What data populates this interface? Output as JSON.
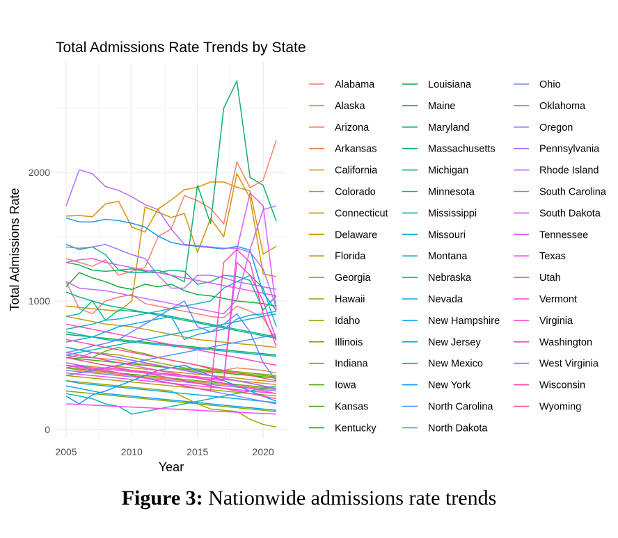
{
  "caption": {
    "label": "Figure 3:",
    "text": "Nationwide admissions rate trends"
  },
  "chart_data": {
    "type": "line",
    "title": "Total Admissions Rate Trends by State",
    "xlabel": "Year",
    "ylabel": "Total Admissions Rate",
    "xlim": [
      2005,
      2021
    ],
    "ylim": [
      0,
      2800
    ],
    "x_ticks": [
      "2005",
      "2010",
      "2015",
      "2020"
    ],
    "y_ticks": [
      "0",
      "1000",
      "2000"
    ],
    "grid": true,
    "legend_position": "right",
    "legend_title": "",
    "x": [
      2005,
      2006,
      2007,
      2008,
      2009,
      2010,
      2011,
      2012,
      2013,
      2014,
      2015,
      2016,
      2017,
      2018,
      2019,
      2020,
      2021
    ],
    "series": [
      {
        "name": "Alabama",
        "color": "#F8766D",
        "values": [
          1150,
          940,
          900,
          1000,
          1030,
          1050,
          980,
          960,
          940,
          920,
          900,
          880,
          870,
          960,
          920,
          870,
          690
        ]
      },
      {
        "name": "Alaska",
        "color": "#F47A5F",
        "values": [
          1330,
          1300,
          1270,
          1320,
          1200,
          1230,
          1260,
          1500,
          1560,
          1820,
          1780,
          1720,
          1600,
          2080,
          1880,
          1940,
          2250
        ]
      },
      {
        "name": "Arizona",
        "color": "#EE7E50",
        "values": [
          560,
          580,
          560,
          550,
          540,
          520,
          510,
          500,
          480,
          460,
          450,
          440,
          460,
          480,
          470,
          460,
          440
        ]
      },
      {
        "name": "Arkansas",
        "color": "#E7833F",
        "values": [
          520,
          500,
          490,
          480,
          470,
          460,
          450,
          440,
          430,
          420,
          410,
          400,
          390,
          380,
          370,
          360,
          350
        ]
      },
      {
        "name": "California",
        "color": "#DF8729",
        "values": [
          480,
          460,
          450,
          440,
          430,
          420,
          410,
          400,
          390,
          380,
          370,
          360,
          350,
          340,
          330,
          320,
          310
        ]
      },
      {
        "name": "Colorado",
        "color": "#D68B00",
        "values": [
          1660,
          1665,
          1655,
          1755,
          1775,
          1575,
          1535,
          1715,
          1785,
          1865,
          1885,
          1925,
          1925,
          1885,
          1855,
          1365,
          1425
        ]
      },
      {
        "name": "Connecticut",
        "color": "#CC8F00",
        "values": [
          960,
          950,
          940,
          930,
          920,
          1000,
          1730,
          1690,
          1650,
          1680,
          1380,
          1640,
          1500,
          1990,
          1800,
          1210,
          1190
        ]
      },
      {
        "name": "Delaware",
        "color": "#C29300",
        "values": [
          880,
          860,
          840,
          820,
          810,
          800,
          780,
          760,
          740,
          720,
          700,
          690,
          680,
          670,
          660,
          650,
          640
        ]
      },
      {
        "name": "Florida",
        "color": "#B79600",
        "values": [
          560,
          540,
          520,
          500,
          490,
          480,
          470,
          460,
          450,
          440,
          430,
          420,
          410,
          400,
          390,
          380,
          370
        ]
      },
      {
        "name": "Georgia",
        "color": "#AB9A00",
        "values": [
          420,
          410,
          400,
          390,
          380,
          370,
          360,
          350,
          340,
          330,
          320,
          310,
          300,
          290,
          280,
          270,
          260
        ]
      },
      {
        "name": "Hawaii",
        "color": "#9E9D00",
        "values": [
          380,
          370,
          360,
          350,
          340,
          330,
          320,
          310,
          300,
          250,
          200,
          160,
          150,
          140,
          80,
          40,
          20
        ]
      },
      {
        "name": "Idaho",
        "color": "#8FA100",
        "values": [
          640,
          620,
          600,
          590,
          580,
          560,
          540,
          520,
          500,
          480,
          470,
          460,
          450,
          440,
          430,
          420,
          410
        ]
      },
      {
        "name": "Illinois",
        "color": "#7FA300",
        "values": [
          300,
          290,
          280,
          270,
          260,
          250,
          240,
          230,
          220,
          210,
          200,
          190,
          180,
          170,
          160,
          150,
          140
        ]
      },
      {
        "name": "Indiana",
        "color": "#6CA600",
        "values": [
          580,
          560,
          560,
          610,
          640,
          610,
          590,
          560,
          540,
          520,
          500,
          470,
          460,
          450,
          440,
          430,
          420
        ]
      },
      {
        "name": "Iowa",
        "color": "#53A900",
        "values": [
          480,
          470,
          460,
          450,
          440,
          430,
          420,
          410,
          400,
          390,
          380,
          370,
          360,
          350,
          340,
          330,
          320
        ]
      },
      {
        "name": "Kansas",
        "color": "#2BAB00",
        "values": [
          560,
          550,
          540,
          530,
          520,
          510,
          500,
          490,
          480,
          470,
          460,
          450,
          440,
          430,
          420,
          410,
          400
        ]
      },
      {
        "name": "Kentucky",
        "color": "#00AD2A",
        "values": [
          1110,
          1220,
          1180,
          1150,
          1110,
          1090,
          1130,
          1110,
          1130,
          1080,
          1050,
          1040,
          1020,
          1000,
          990,
          980,
          960
        ]
      },
      {
        "name": "Louisiana",
        "color": "#00AF47",
        "values": [
          740,
          730,
          720,
          710,
          700,
          690,
          680,
          670,
          660,
          650,
          640,
          630,
          620,
          610,
          600,
          590,
          580
        ]
      },
      {
        "name": "Maine",
        "color": "#00B05E",
        "values": [
          1300,
          1280,
          1240,
          1230,
          1240,
          1250,
          1230,
          1240,
          1200,
          1150,
          1900,
          1600,
          2500,
          2710,
          1960,
          1900,
          1620
        ]
      },
      {
        "name": "Maryland",
        "color": "#00B172",
        "values": [
          1070,
          1030,
          1000,
          970,
          950,
          930,
          910,
          890,
          870,
          850,
          830,
          810,
          790,
          770,
          750,
          730,
          710
        ]
      },
      {
        "name": "Massachusetts",
        "color": "#00B284",
        "values": [
          1440,
          1400,
          1420,
          1360,
          1240,
          1220,
          1220,
          1220,
          1240,
          1230,
          1130,
          1150,
          1200,
          1190,
          1160,
          930,
          1040
        ]
      },
      {
        "name": "Michigan",
        "color": "#00B395",
        "values": [
          880,
          900,
          1000,
          850,
          930,
          920,
          910,
          900,
          880,
          860,
          840,
          820,
          800,
          780,
          760,
          740,
          720
        ]
      },
      {
        "name": "Minnesota",
        "color": "#00B3A5",
        "values": [
          280,
          260,
          240,
          200,
          180,
          120,
          140,
          160,
          180,
          200,
          220,
          240,
          260,
          280,
          300,
          320,
          340
        ]
      },
      {
        "name": "Mississippi",
        "color": "#00B2B4",
        "values": [
          580,
          600,
          620,
          640,
          660,
          680,
          700,
          720,
          740,
          760,
          780,
          800,
          820,
          840,
          860,
          880,
          900
        ]
      },
      {
        "name": "Missouri",
        "color": "#00B0C2",
        "values": [
          780,
          800,
          820,
          850,
          860,
          880,
          900,
          920,
          940,
          960,
          980,
          1000,
          1100,
          1150,
          1200,
          1100,
          800
        ]
      },
      {
        "name": "Montana",
        "color": "#00AECF",
        "values": [
          760,
          740,
          720,
          700,
          690,
          680,
          670,
          660,
          650,
          640,
          630,
          620,
          610,
          600,
          590,
          580,
          570
        ]
      },
      {
        "name": "Nebraska",
        "color": "#00ABDA",
        "values": [
          380,
          360,
          350,
          340,
          330,
          320,
          310,
          300,
          290,
          280,
          270,
          260,
          250,
          240,
          230,
          220,
          210
        ]
      },
      {
        "name": "Nevada",
        "color": "#00A8E4",
        "values": [
          640,
          620,
          600,
          580,
          560,
          540,
          520,
          500,
          480,
          460,
          440,
          420,
          400,
          380,
          360,
          340,
          320
        ]
      },
      {
        "name": "New Hampshire",
        "color": "#00A4EC",
        "values": [
          680,
          700,
          720,
          760,
          800,
          820,
          840,
          860,
          880,
          700,
          740,
          760,
          780,
          860,
          890,
          900,
          920
        ]
      },
      {
        "name": "New Jersey",
        "color": "#00A0F4",
        "values": [
          340,
          320,
          300,
          280,
          270,
          260,
          250,
          240,
          230,
          220,
          210,
          200,
          190,
          180,
          170,
          160,
          150
        ]
      },
      {
        "name": "New Mexico",
        "color": "#009BFA",
        "values": [
          260,
          200,
          270,
          300,
          340,
          380,
          420,
          460,
          480,
          500,
          460,
          420,
          380,
          340,
          300,
          260,
          220
        ]
      },
      {
        "name": "New York",
        "color": "#0795FF",
        "values": [
          1645,
          1615,
          1615,
          1635,
          1625,
          1605,
          1575,
          1505,
          1455,
          1435,
          1425,
          1415,
          1405,
          1425,
          1395,
          1065,
          925
        ]
      },
      {
        "name": "North Carolina",
        "color": "#3A8EFF",
        "values": [
          420,
          440,
          460,
          480,
          500,
          520,
          540,
          560,
          580,
          600,
          620,
          640,
          660,
          680,
          700,
          720,
          740
        ]
      },
      {
        "name": "North Dakota",
        "color": "#5A87FF",
        "values": [
          600,
          620,
          650,
          670,
          700,
          760,
          820,
          880,
          940,
          1000,
          800,
          760,
          820,
          900,
          760,
          520,
          380
        ]
      },
      {
        "name": "Ohio",
        "color": "#727FFF",
        "values": [
          520,
          500,
          480,
          460,
          440,
          420,
          400,
          380,
          360,
          340,
          320,
          300,
          280,
          260,
          240,
          220,
          200
        ]
      },
      {
        "name": "Oklahoma",
        "color": "#8977FF",
        "values": [
          460,
          450,
          440,
          430,
          420,
          410,
          400,
          390,
          380,
          370,
          360,
          350,
          340,
          330,
          320,
          310,
          300
        ]
      },
      {
        "name": "Oregon",
        "color": "#9D6FFF",
        "values": [
          1420,
          1410,
          1420,
          1440,
          1400,
          1360,
          1330,
          1200,
          1100,
          1100,
          1200,
          1200,
          1180,
          1150,
          1130,
          1110,
          1090
        ]
      },
      {
        "name": "Pennsylvania",
        "color": "#AE68FF",
        "values": [
          1740,
          2020,
          1990,
          1890,
          1860,
          1810,
          1750,
          1710,
          1560,
          1440,
          1430,
          1420,
          1410,
          1410,
          1380,
          1250,
          950
        ]
      },
      {
        "name": "Rhode Island",
        "color": "#BE61FF",
        "values": [
          1150,
          1100,
          1090,
          1080,
          1060,
          1040,
          1020,
          1000,
          980,
          960,
          940,
          920,
          900,
          1010,
          1400,
          1710,
          1740
        ]
      },
      {
        "name": "South Carolina",
        "color": "#CC5AFF",
        "values": [
          580,
          560,
          600,
          580,
          560,
          540,
          520,
          500,
          480,
          460,
          440,
          420,
          400,
          380,
          360,
          340,
          320
        ]
      },
      {
        "name": "South Dakota",
        "color": "#D953FF",
        "values": [
          500,
          490,
          480,
          470,
          460,
          450,
          440,
          430,
          420,
          410,
          400,
          390,
          380,
          1400,
          1840,
          1740,
          930
        ]
      },
      {
        "name": "Tennessee",
        "color": "#E44DFA",
        "values": [
          1300,
          1320,
          1330,
          1300,
          1280,
          1260,
          1240,
          1220,
          1200,
          1180,
          1160,
          1140,
          1120,
          1100,
          1080,
          1060,
          1040
        ]
      },
      {
        "name": "Texas",
        "color": "#EE47F1",
        "values": [
          440,
          430,
          420,
          410,
          400,
          390,
          380,
          370,
          360,
          350,
          340,
          330,
          320,
          310,
          300,
          290,
          280
        ]
      },
      {
        "name": "Utah",
        "color": "#F742E7",
        "values": [
          200,
          195,
          190,
          185,
          180,
          175,
          170,
          165,
          160,
          155,
          150,
          145,
          140,
          135,
          130,
          125,
          120
        ]
      },
      {
        "name": "Vermont",
        "color": "#FD3FDB",
        "values": [
          600,
          580,
          560,
          540,
          520,
          500,
          480,
          460,
          440,
          420,
          400,
          380,
          360,
          340,
          320,
          300,
          280
        ]
      },
      {
        "name": "Virginia",
        "color": "#FF3DCF",
        "values": [
          480,
          500,
          460,
          480,
          470,
          460,
          450,
          440,
          430,
          420,
          410,
          400,
          390,
          1300,
          1200,
          1000,
          700
        ]
      },
      {
        "name": "Washington",
        "color": "#FF3EC1",
        "values": [
          820,
          800,
          780,
          760,
          740,
          720,
          700,
          680,
          660,
          640,
          620,
          600,
          580,
          560,
          540,
          520,
          500
        ]
      },
      {
        "name": "West Virginia",
        "color": "#FF40B2",
        "values": [
          500,
          480,
          470,
          460,
          440,
          420,
          400,
          380,
          360,
          340,
          320,
          300,
          1300,
          1400,
          1300,
          900,
          650
        ]
      },
      {
        "name": "Wisconsin",
        "color": "#FF45A2",
        "values": [
          560,
          540,
          520,
          500,
          480,
          460,
          440,
          420,
          400,
          380,
          360,
          340,
          320,
          300,
          280,
          260,
          240
        ]
      },
      {
        "name": "Wyoming",
        "color": "#FF4A91",
        "values": [
          700,
          680,
          660,
          640,
          620,
          600,
          580,
          560,
          540,
          520,
          500,
          480,
          460,
          440,
          420,
          400,
          380
        ]
      }
    ]
  }
}
